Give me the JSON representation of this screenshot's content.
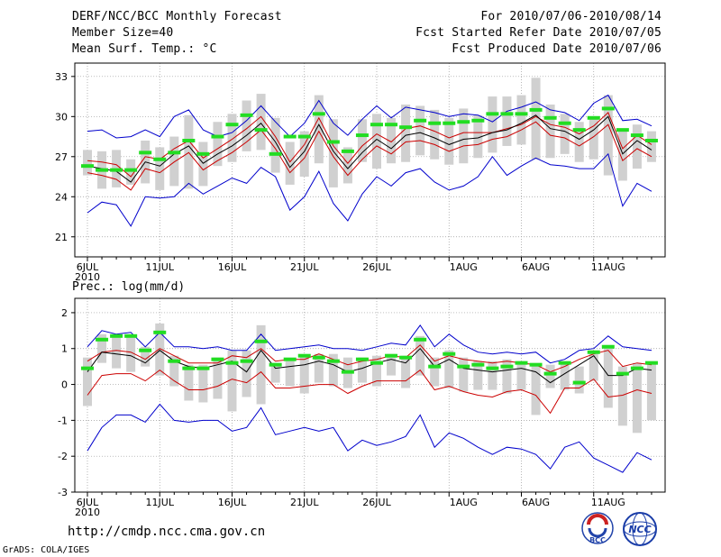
{
  "header": {
    "title": "DERF/NCC/BCC Monthly Forecast",
    "member_size": "Member Size=40",
    "variable_temp": "Mean Surf. Temp.: °C",
    "period": "For 2010/07/06-2010/08/14",
    "started": "Fcst Started Refer Date 2010/07/05",
    "produced": "Fcst Produced Date 2010/07/06"
  },
  "footer": {
    "url": "http://cmdp.ncc.cma.gov.cn",
    "credit": "GrADS: COLA/IGES",
    "logo_left": "BCC",
    "logo_right": "NCC"
  },
  "colors": {
    "max_min": "#0000cc",
    "spread": "#cc0000",
    "mean": "#000000",
    "median": "#22dd22",
    "box": "#d0d0d0"
  },
  "chart_data": [
    {
      "type": "line",
      "title": "Mean Surf. Temp.: °C",
      "x_tick_labels": [
        "6JUL",
        "11JUL",
        "16JUL",
        "21JUL",
        "26JUL",
        "1AUG",
        "6AUG",
        "11AUG"
      ],
      "x_tick_day_index": [
        0,
        5,
        10,
        15,
        20,
        26,
        31,
        36
      ],
      "year_label": "2010",
      "ylim": [
        19.5,
        34
      ],
      "y_ticks": [
        21,
        24,
        27,
        30,
        33
      ],
      "days": 40,
      "series": [
        {
          "name": "max",
          "values": [
            28.9,
            29.0,
            28.4,
            28.5,
            29.0,
            28.5,
            30.0,
            30.5,
            29.0,
            28.5,
            28.8,
            29.7,
            30.8,
            29.6,
            28.5,
            29.5,
            31.2,
            29.5,
            28.6,
            29.8,
            30.8,
            29.9,
            30.7,
            30.5,
            30.3,
            30.0,
            30.2,
            30.1,
            29.6,
            30.4,
            30.7,
            31.1,
            30.5,
            30.3,
            29.7,
            31.0,
            31.6,
            29.7,
            29.8,
            29.3
          ]
        },
        {
          "name": "min",
          "values": [
            22.8,
            23.6,
            23.4,
            21.8,
            24.0,
            23.9,
            24.0,
            25.0,
            24.2,
            24.8,
            25.4,
            25.0,
            26.2,
            25.5,
            23.0,
            24.0,
            25.9,
            23.5,
            22.2,
            24.2,
            25.5,
            24.8,
            25.8,
            26.1,
            25.1,
            24.5,
            24.8,
            25.5,
            27.0,
            25.6,
            26.3,
            26.9,
            26.4,
            26.3,
            26.1,
            26.1,
            27.2,
            23.3,
            25.0,
            24.4
          ]
        },
        {
          "name": "mean_plus_sd",
          "values": [
            26.7,
            26.6,
            26.4,
            25.5,
            27.0,
            26.8,
            27.6,
            28.2,
            26.9,
            27.6,
            28.3,
            29.1,
            30.0,
            28.5,
            26.6,
            27.9,
            29.9,
            27.8,
            26.5,
            27.8,
            28.7,
            28.1,
            29.1,
            29.3,
            28.9,
            28.4,
            28.8,
            28.8,
            28.8,
            29.1,
            29.4,
            30.0,
            29.4,
            29.2,
            28.7,
            29.3,
            30.3,
            27.6,
            28.6,
            27.9
          ]
        },
        {
          "name": "mean",
          "values": [
            26.3,
            26.1,
            25.9,
            25.1,
            26.6,
            26.3,
            27.2,
            27.8,
            26.5,
            27.2,
            27.8,
            28.6,
            29.5,
            28.1,
            26.2,
            27.4,
            29.4,
            27.4,
            26.1,
            27.3,
            28.3,
            27.6,
            28.6,
            28.8,
            28.4,
            27.9,
            28.3,
            28.4,
            28.8,
            29.0,
            29.5,
            30.1,
            29.1,
            28.9,
            28.3,
            29.0,
            30.0,
            27.2,
            28.2,
            27.5
          ]
        },
        {
          "name": "mean_minus_sd",
          "values": [
            25.8,
            25.6,
            25.3,
            24.5,
            26.1,
            25.8,
            26.6,
            27.3,
            26.0,
            26.7,
            27.3,
            28.1,
            29.0,
            27.6,
            25.8,
            26.9,
            28.9,
            27.0,
            25.6,
            26.8,
            27.8,
            27.2,
            28.1,
            28.2,
            27.9,
            27.4,
            27.8,
            27.9,
            28.3,
            28.5,
            29.0,
            29.6,
            28.6,
            28.4,
            27.8,
            28.5,
            29.4,
            26.7,
            27.6,
            27.0
          ]
        },
        {
          "name": "median",
          "values": [
            26.3,
            26.0,
            26.0,
            26.0,
            27.3,
            26.8,
            27.3,
            28.2,
            27.2,
            28.5,
            29.4,
            30.1,
            29.0,
            27.2,
            28.5,
            28.5,
            30.2,
            28.1,
            27.4,
            28.6,
            29.4,
            29.4,
            29.2,
            29.7,
            29.5,
            29.5,
            29.6,
            29.7,
            30.2,
            30.2,
            30.2,
            30.5,
            29.9,
            29.5,
            29.0,
            29.9,
            30.6,
            29.0,
            28.6,
            28.2
          ]
        },
        {
          "name": "box_hi",
          "values": [
            27.5,
            27.4,
            27.5,
            26.8,
            28.2,
            27.7,
            28.5,
            30.1,
            28.1,
            29.6,
            30.2,
            31.2,
            31.7,
            29.9,
            28.1,
            28.9,
            31.6,
            29.8,
            27.7,
            29.8,
            30.2,
            29.9,
            30.9,
            30.8,
            30.5,
            29.9,
            30.6,
            30.1,
            31.5,
            31.5,
            31.6,
            32.9,
            30.9,
            30.2,
            29.6,
            30.0,
            31.6,
            29.1,
            29.4,
            28.9
          ]
        },
        {
          "name": "box_lo",
          "values": [
            25.6,
            24.6,
            24.7,
            24.9,
            25.0,
            24.5,
            24.8,
            24.6,
            24.8,
            26.3,
            26.6,
            27.4,
            27.5,
            25.8,
            24.9,
            25.5,
            26.5,
            24.7,
            25.0,
            26.6,
            26.1,
            26.5,
            26.6,
            27.1,
            26.8,
            26.4,
            26.5,
            26.9,
            27.3,
            27.8,
            27.9,
            26.8,
            26.9,
            27.2,
            26.6,
            26.8,
            25.6,
            25.2,
            26.1,
            26.6
          ]
        }
      ]
    },
    {
      "type": "line",
      "title": "Prec.: log(mm/d)",
      "x_tick_labels": [
        "6JUL",
        "11JUL",
        "16JUL",
        "21JUL",
        "26JUL",
        "1AUG",
        "6AUG",
        "11AUG"
      ],
      "x_tick_day_index": [
        0,
        5,
        10,
        15,
        20,
        26,
        31,
        36
      ],
      "year_label": "2010",
      "ylim": [
        -3,
        2.4
      ],
      "y_ticks": [
        -3,
        -2,
        -1,
        0,
        1,
        2
      ],
      "days": 40,
      "series": [
        {
          "name": "max",
          "values": [
            1.05,
            1.5,
            1.4,
            1.45,
            1.05,
            1.45,
            1.05,
            1.05,
            1.0,
            1.05,
            0.95,
            0.95,
            1.4,
            0.95,
            1.0,
            1.05,
            1.1,
            1.0,
            1.0,
            0.95,
            1.05,
            1.15,
            1.1,
            1.65,
            1.05,
            1.4,
            1.1,
            0.9,
            0.85,
            0.9,
            0.85,
            0.9,
            0.6,
            0.7,
            0.95,
            1.0,
            1.35,
            1.05,
            1.0,
            0.95
          ]
        },
        {
          "name": "min",
          "values": [
            -1.85,
            -1.2,
            -0.85,
            -0.85,
            -1.05,
            -0.55,
            -1.0,
            -1.05,
            -1.0,
            -1.0,
            -1.3,
            -1.2,
            -0.65,
            -1.4,
            -1.3,
            -1.2,
            -1.3,
            -1.2,
            -1.85,
            -1.55,
            -1.7,
            -1.6,
            -1.45,
            -0.85,
            -1.75,
            -1.35,
            -1.5,
            -1.75,
            -1.95,
            -1.75,
            -1.8,
            -1.95,
            -2.35,
            -1.75,
            -1.6,
            -2.05,
            -2.25,
            -2.45,
            -1.9,
            -2.1
          ]
        },
        {
          "name": "mean_plus_sd",
          "values": [
            0.65,
            0.9,
            0.95,
            0.9,
            0.7,
            1.0,
            0.8,
            0.6,
            0.6,
            0.6,
            0.8,
            0.75,
            1.0,
            0.65,
            0.7,
            0.7,
            0.85,
            0.7,
            0.55,
            0.65,
            0.7,
            0.8,
            0.75,
            1.1,
            0.65,
            0.8,
            0.7,
            0.65,
            0.6,
            0.65,
            0.6,
            0.55,
            0.35,
            0.5,
            0.7,
            0.85,
            0.95,
            0.5,
            0.6,
            0.55
          ]
        },
        {
          "name": "mean",
          "values": [
            0.35,
            0.9,
            0.85,
            0.8,
            0.6,
            0.95,
            0.65,
            0.5,
            0.45,
            0.55,
            0.65,
            0.35,
            0.95,
            0.45,
            0.5,
            0.55,
            0.65,
            0.55,
            0.35,
            0.45,
            0.6,
            0.7,
            0.6,
            1.0,
            0.5,
            0.7,
            0.45,
            0.4,
            0.35,
            0.4,
            0.45,
            0.35,
            0.05,
            0.3,
            0.55,
            0.8,
            0.25,
            0.25,
            0.45,
            0.4
          ]
        },
        {
          "name": "mean_minus_sd",
          "values": [
            -0.3,
            0.25,
            0.3,
            0.3,
            0.1,
            0.4,
            0.1,
            -0.15,
            -0.15,
            -0.05,
            0.15,
            0.05,
            0.35,
            -0.1,
            -0.1,
            -0.05,
            0.0,
            0.0,
            -0.25,
            -0.05,
            0.1,
            0.1,
            0.1,
            0.4,
            -0.15,
            -0.05,
            -0.2,
            -0.3,
            -0.35,
            -0.2,
            -0.15,
            -0.3,
            -0.8,
            -0.1,
            -0.1,
            0.15,
            -0.35,
            -0.3,
            -0.15,
            -0.25
          ]
        },
        {
          "name": "median",
          "values": [
            0.45,
            1.25,
            1.35,
            1.35,
            0.95,
            1.45,
            0.65,
            0.45,
            0.45,
            0.7,
            0.6,
            0.65,
            1.2,
            0.55,
            0.7,
            0.8,
            0.75,
            0.65,
            0.35,
            0.7,
            0.6,
            0.8,
            0.75,
            1.25,
            0.5,
            0.85,
            0.5,
            0.55,
            0.45,
            0.5,
            0.6,
            0.55,
            0.3,
            0.6,
            0.05,
            0.9,
            1.05,
            0.3,
            0.45,
            0.6
          ]
        },
        {
          "name": "box_hi",
          "values": [
            0.75,
            1.4,
            1.4,
            1.35,
            1.05,
            1.7,
            0.8,
            0.55,
            0.55,
            0.75,
            0.95,
            0.95,
            1.65,
            0.6,
            0.65,
            0.8,
            0.85,
            0.85,
            0.75,
            0.75,
            0.8,
            0.85,
            0.8,
            1.35,
            0.75,
            0.95,
            0.75,
            0.65,
            0.65,
            0.7,
            0.65,
            0.55,
            0.55,
            0.65,
            0.5,
            0.95,
            1.1,
            0.5,
            0.6,
            0.6
          ]
        },
        {
          "name": "box_lo",
          "values": [
            -0.6,
            0.6,
            0.45,
            0.35,
            0.5,
            0.25,
            -0.05,
            -0.45,
            -0.5,
            -0.4,
            -0.75,
            -0.35,
            -0.55,
            0.05,
            -0.05,
            -0.25,
            0.05,
            -0.05,
            -0.1,
            0.05,
            -0.05,
            0.25,
            -0.1,
            0.25,
            -0.05,
            -0.1,
            -0.2,
            -0.15,
            -0.15,
            -0.25,
            -0.15,
            -0.85,
            -0.1,
            -0.15,
            -0.25,
            0.1,
            -0.65,
            -1.15,
            -1.35,
            -1.0
          ]
        }
      ]
    }
  ]
}
